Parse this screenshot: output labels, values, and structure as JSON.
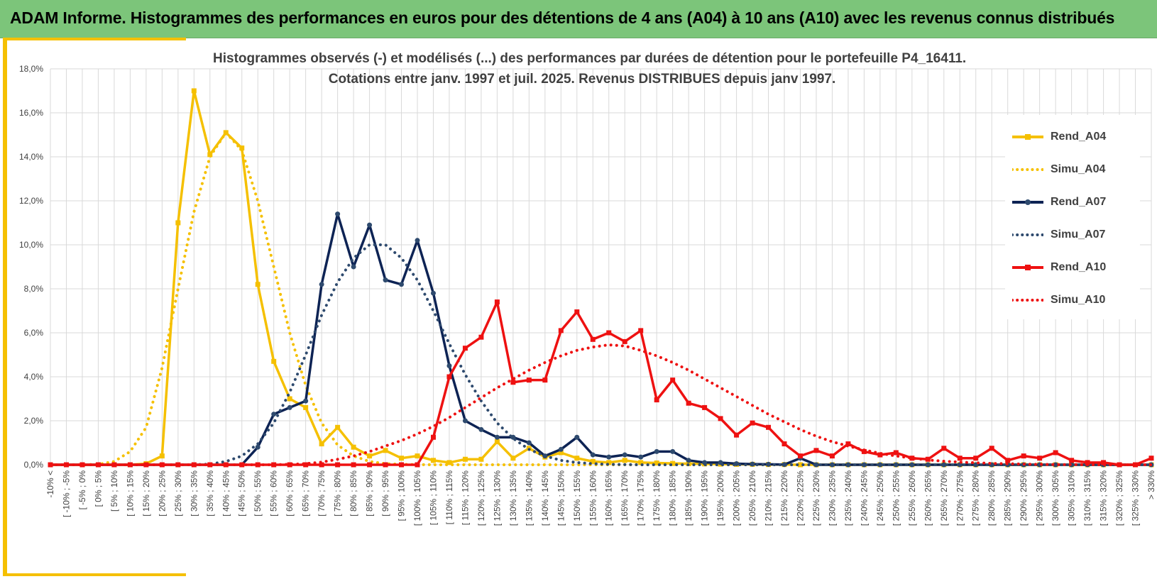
{
  "header": {
    "title": "ADAM Informe. Histogrammes des performances en euros pour des détentions de 4 ans (A04) à 10 ans (A10) avec les revenus connus distribués"
  },
  "chart_data": {
    "type": "line",
    "title": "Histogrammes observés (-) et modélisés (...) des performances par durées de détention pour le portefeuille P4_16411.",
    "subtitle": "Cotations entre janv. 1997 et juil. 2025. Revenus DISTRIBUES depuis janv 1997.",
    "xlabel": "",
    "ylabel": "",
    "ylim": [
      0,
      18
    ],
    "y_ticks": [
      "0,0%",
      "2,0%",
      "4,0%",
      "6,0%",
      "8,0%",
      "10,0%",
      "12,0%",
      "14,0%",
      "16,0%",
      "18,0%"
    ],
    "y_tick_values": [
      0,
      2,
      4,
      6,
      8,
      10,
      12,
      14,
      16,
      18
    ],
    "grid": true,
    "legend_position": "right",
    "categories": [
      "-10% <",
      "[ -10% ; -5%",
      "[ -5% ; 0%",
      "[ 0% ; 5%",
      "[ 5% ; 10%",
      "[ 10% ; 15%",
      "[ 15% ; 20%",
      "[ 20% ; 25%",
      "[ 25% ; 30%",
      "[ 30% ; 35%",
      "[ 35% ; 40%",
      "[ 40% ; 45%",
      "[ 45% ; 50%",
      "[ 50% ; 55%",
      "[ 55% ; 60%",
      "[ 60% ; 65%",
      "[ 65% ; 70%",
      "[ 70% ; 75%",
      "[ 75% ; 80%",
      "[ 80% ; 85%",
      "[ 85% ; 90%",
      "[ 90% ; 95%",
      "[ 95% ; 100%",
      "[ 100% ; 105%",
      "[ 105% ; 110%",
      "[ 110% ; 115%",
      "[ 115% ; 120%",
      "[ 120% ; 125%",
      "[ 125% ; 130%",
      "[ 130% ; 135%",
      "[ 135% ; 140%",
      "[ 140% ; 145%",
      "[ 145% ; 150%",
      "[ 150% ; 155%",
      "[ 155% ; 160%",
      "[ 160% ; 165%",
      "[ 165% ; 170%",
      "[ 170% ; 175%",
      "[ 175% ; 180%",
      "[ 180% ; 185%",
      "[ 185% ; 190%",
      "[ 190% ; 195%",
      "[ 195% ; 200%",
      "[ 200% ; 205%",
      "[ 205% ; 210%",
      "[ 210% ; 215%",
      "[ 215% ; 220%",
      "[ 220% ; 225%",
      "[ 225% ; 230%",
      "[ 230% ; 235%",
      "[ 235% ; 240%",
      "[ 240% ; 245%",
      "[ 245% ; 250%",
      "[ 250% ; 255%",
      "[ 255% ; 260%",
      "[ 260% ; 265%",
      "[ 265% ; 270%",
      "[ 270% ; 275%",
      "[ 275% ; 280%",
      "[ 280% ; 285%",
      "[ 285% ; 290%",
      "[ 290% ; 295%",
      "[ 295% ; 300%",
      "[ 300% ; 305%",
      "[ 305% ; 310%",
      "[ 310% ; 315%",
      "[ 315% ; 320%",
      "[ 320% ; 325%",
      "[ 325% ; 330%",
      "> 330%"
    ],
    "series": [
      {
        "name": "Rend_A04",
        "style": "solid",
        "markers": "square",
        "color": "#f5c000",
        "values": [
          0,
          0,
          0,
          0,
          0,
          0,
          0.05,
          0.4,
          11.0,
          17.0,
          14.1,
          15.1,
          14.4,
          8.2,
          4.7,
          3.0,
          2.6,
          0.95,
          1.7,
          0.8,
          0.4,
          0.65,
          0.3,
          0.4,
          0.2,
          0.1,
          0.25,
          0.25,
          1.05,
          0.3,
          0.75,
          0.35,
          0.55,
          0.3,
          0.15,
          0.1,
          0.2,
          0.1,
          0.08,
          0.06,
          0.05,
          0.04,
          0.03,
          0.02,
          0.02,
          0.01,
          0.01,
          0,
          0,
          0,
          0,
          0,
          0,
          0,
          0,
          0,
          0,
          0,
          0,
          0,
          0,
          0,
          0,
          0,
          0,
          0,
          0,
          0,
          0,
          0
        ]
      },
      {
        "name": "Simu_A04",
        "style": "dotted",
        "markers": "none",
        "color": "#f5c000",
        "values": [
          0,
          0,
          0,
          0.02,
          0.15,
          0.6,
          1.7,
          4.4,
          8.0,
          11.5,
          14.0,
          15.1,
          14.3,
          12.0,
          9.0,
          6.0,
          3.6,
          1.9,
          0.9,
          0.4,
          0.15,
          0.05,
          0.02,
          0.01,
          0,
          0,
          0,
          0,
          0,
          0,
          0,
          0,
          0,
          0,
          0,
          0,
          0,
          0,
          0,
          0,
          0,
          0,
          0,
          0,
          0,
          0,
          0,
          0,
          0,
          0,
          0,
          0,
          0,
          0,
          0,
          0,
          0,
          0,
          0,
          0,
          0,
          0,
          0,
          0,
          0,
          0,
          0,
          0,
          0,
          0
        ]
      },
      {
        "name": "Rend_A07",
        "style": "solid",
        "markers": "circle",
        "color": "#0d2354",
        "values": [
          0,
          0,
          0,
          0,
          0,
          0,
          0,
          0,
          0,
          0,
          0,
          0,
          0,
          0.8,
          2.3,
          2.6,
          2.9,
          8.2,
          11.4,
          9.0,
          10.9,
          8.4,
          8.2,
          10.2,
          7.8,
          4.5,
          2.0,
          1.6,
          1.25,
          1.25,
          1.0,
          0.4,
          0.7,
          1.25,
          0.45,
          0.35,
          0.45,
          0.35,
          0.6,
          0.6,
          0.2,
          0.1,
          0.1,
          0.05,
          0.03,
          0.02,
          0.01,
          0.3,
          0,
          0,
          0,
          0,
          0,
          0,
          0,
          0,
          0,
          0,
          0,
          0,
          0,
          0,
          0,
          0,
          0,
          0,
          0,
          0,
          0,
          0
        ]
      },
      {
        "name": "Simu_A07",
        "style": "dotted",
        "markers": "none",
        "color": "#2e4a6e",
        "values": [
          0,
          0,
          0,
          0,
          0,
          0,
          0,
          0,
          0,
          0,
          0.03,
          0.15,
          0.4,
          0.95,
          1.9,
          3.3,
          5.0,
          6.8,
          8.3,
          9.4,
          10.0,
          10.0,
          9.4,
          8.4,
          7.0,
          5.5,
          4.1,
          2.9,
          1.9,
          1.2,
          0.7,
          0.4,
          0.2,
          0.1,
          0.05,
          0.02,
          0.01,
          0,
          0,
          0,
          0,
          0,
          0,
          0,
          0,
          0,
          0,
          0,
          0,
          0,
          0,
          0,
          0,
          0,
          0,
          0,
          0,
          0,
          0,
          0,
          0,
          0,
          0,
          0,
          0,
          0,
          0,
          0,
          0,
          0
        ]
      },
      {
        "name": "Rend_A10",
        "style": "solid",
        "markers": "square",
        "color": "#ee1111",
        "values": [
          0,
          0,
          0,
          0,
          0,
          0,
          0,
          0,
          0,
          0,
          0,
          0,
          0,
          0,
          0,
          0,
          0,
          0,
          0,
          0,
          0,
          0,
          0,
          0,
          1.25,
          4.0,
          5.3,
          5.8,
          7.4,
          3.75,
          3.85,
          3.85,
          6.1,
          6.95,
          5.7,
          6.0,
          5.6,
          6.1,
          2.95,
          3.85,
          2.8,
          2.6,
          2.1,
          1.35,
          1.9,
          1.7,
          0.95,
          0.4,
          0.65,
          0.4,
          0.95,
          0.6,
          0.45,
          0.55,
          0.3,
          0.25,
          0.75,
          0.3,
          0.3,
          0.75,
          0.2,
          0.4,
          0.3,
          0.55,
          0.2,
          0.1,
          0.1,
          0,
          0,
          0.3
        ]
      },
      {
        "name": "Simu_A10",
        "style": "dotted",
        "markers": "none",
        "color": "#ee1111",
        "values": [
          0,
          0,
          0,
          0,
          0,
          0,
          0,
          0,
          0,
          0,
          0,
          0,
          0,
          0,
          0,
          0.02,
          0.05,
          0.12,
          0.25,
          0.4,
          0.6,
          0.85,
          1.1,
          1.4,
          1.75,
          2.15,
          2.6,
          3.05,
          3.5,
          3.9,
          4.3,
          4.65,
          4.95,
          5.2,
          5.35,
          5.45,
          5.4,
          5.2,
          4.95,
          4.65,
          4.3,
          3.9,
          3.5,
          3.1,
          2.7,
          2.3,
          1.95,
          1.6,
          1.3,
          1.05,
          0.85,
          0.67,
          0.52,
          0.4,
          0.3,
          0.22,
          0.16,
          0.12,
          0.09,
          0.06,
          0.05,
          0.03,
          0.02,
          0.01,
          0.01,
          0,
          0,
          0,
          0,
          0
        ]
      }
    ]
  }
}
